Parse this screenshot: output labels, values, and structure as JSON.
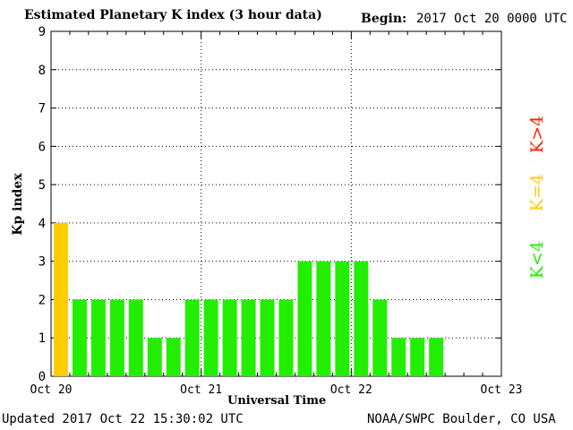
{
  "header": {
    "title": "Estimated Planetary K index (3 hour data)",
    "begin_label": "Begin:",
    "begin_value": "2017 Oct 20 0000 UTC"
  },
  "footer": {
    "updated": "Updated 2017 Oct 22 15:30:02 UTC",
    "credit": "NOAA/SWPC Boulder, CO USA"
  },
  "legend": {
    "high": "K>4",
    "equal": "K=4",
    "low": "K<4",
    "colors": {
      "high": "#ff2200",
      "equal": "#ffcc00",
      "low": "#22ee00"
    }
  },
  "chart_data": {
    "type": "bar",
    "title": "Estimated Planetary K index (3 hour data)",
    "xlabel": "Universal Time",
    "ylabel": "Kp index",
    "ylim": [
      0,
      9
    ],
    "yticks": [
      "0",
      "1",
      "2",
      "3",
      "4",
      "5",
      "6",
      "7",
      "8",
      "9"
    ],
    "xticks": [
      "Oct 20",
      "Oct 21",
      "Oct 22",
      "Oct 23"
    ],
    "bar_period_hours": 3,
    "grid": true,
    "categories": [
      "Oct 20 00-03",
      "Oct 20 03-06",
      "Oct 20 06-09",
      "Oct 20 09-12",
      "Oct 20 12-15",
      "Oct 20 15-18",
      "Oct 20 18-21",
      "Oct 20 21-24",
      "Oct 21 00-03",
      "Oct 21 03-06",
      "Oct 21 06-09",
      "Oct 21 09-12",
      "Oct 21 12-15",
      "Oct 21 15-18",
      "Oct 21 18-21",
      "Oct 21 21-24",
      "Oct 22 00-03",
      "Oct 22 03-06",
      "Oct 22 06-09",
      "Oct 22 09-12",
      "Oct 22 12-15"
    ],
    "values": [
      4,
      2,
      2,
      2,
      2,
      1,
      1,
      2,
      2,
      2,
      2,
      2,
      2,
      3,
      3,
      3,
      3,
      2,
      1,
      1,
      1
    ]
  }
}
